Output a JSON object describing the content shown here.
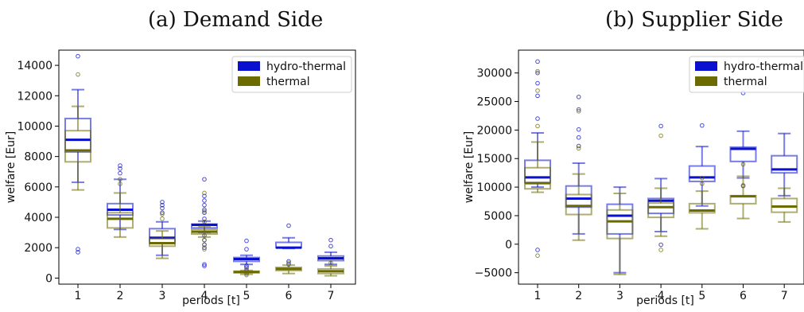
{
  "chart_data": [
    {
      "type": "box",
      "title": "(a) Demand Side",
      "xlabel": "periods [t]",
      "ylabel": "welfare [Eur]",
      "categories": [
        "1",
        "2",
        "3",
        "4",
        "5",
        "6",
        "7"
      ],
      "ylim": [
        -400,
        15000
      ],
      "yticks": [
        0,
        2000,
        4000,
        6000,
        8000,
        10000,
        12000,
        14000
      ],
      "legend_position": "top-right",
      "colors": {
        "hydro-thermal": "#0a10d0",
        "thermal": "#6b6b00"
      },
      "series": [
        {
          "name": "hydro-thermal",
          "boxes": [
            {
              "whislo": 6300,
              "q1": 8300,
              "med": 9100,
              "q3": 10500,
              "whishi": 12400,
              "fliers": [
                1700,
                1900,
                14600
              ]
            },
            {
              "whislo": 3200,
              "q1": 4150,
              "med": 4500,
              "q3": 4900,
              "whishi": 6500,
              "fliers": [
                6900,
                7200,
                7400
              ]
            },
            {
              "whislo": 1500,
              "q1": 2300,
              "med": 2650,
              "q3": 3250,
              "whishi": 3700,
              "fliers": [
                4300,
                4600,
                4800,
                5000
              ]
            },
            {
              "whislo": 3000,
              "q1": 3300,
              "med": 3500,
              "q3": 3550,
              "whishi": 3750,
              "fliers": [
                800,
                900,
                2000,
                2200,
                2500,
                2800,
                3900,
                4300,
                4500,
                4800,
                5100,
                5400,
                6500
              ]
            },
            {
              "whislo": 900,
              "q1": 1100,
              "med": 1250,
              "q3": 1350,
              "whishi": 1500,
              "fliers": [
                300,
                500,
                700,
                800,
                1900,
                2450
              ]
            },
            {
              "whislo": 1950,
              "q1": 2000,
              "med": 2000,
              "q3": 2350,
              "whishi": 2650,
              "fliers": [
                900,
                1100,
                3450
              ]
            },
            {
              "whislo": 900,
              "q1": 1150,
              "med": 1300,
              "q3": 1450,
              "whishi": 1700,
              "fliers": [
                2100,
                2500
              ]
            }
          ]
        },
        {
          "name": "thermal",
          "boxes": [
            {
              "whislo": 5800,
              "q1": 7650,
              "med": 8400,
              "q3": 9700,
              "whishi": 11300,
              "fliers": [
                13400
              ]
            },
            {
              "whislo": 2700,
              "q1": 3300,
              "med": 3900,
              "q3": 4300,
              "whishi": 5600,
              "fliers": [
                6200,
                6500
              ]
            },
            {
              "whislo": 1300,
              "q1": 2100,
              "med": 2300,
              "q3": 2600,
              "whishi": 3100,
              "fliers": [
                3900,
                4200
              ]
            },
            {
              "whislo": 2700,
              "q1": 2900,
              "med": 3050,
              "q3": 3200,
              "whishi": 3400,
              "fliers": [
                1900,
                2200,
                2500,
                3700,
                4400,
                5600
              ]
            },
            {
              "whislo": 250,
              "q1": 350,
              "med": 400,
              "q3": 450,
              "whishi": 500,
              "fliers": [
                200,
                600
              ]
            },
            {
              "whislo": 300,
              "q1": 500,
              "med": 600,
              "q3": 700,
              "whishi": 850,
              "fliers": [
                1000
              ]
            },
            {
              "whislo": 150,
              "q1": 300,
              "med": 450,
              "q3": 600,
              "whishi": 800,
              "fliers": [
                1000
              ]
            }
          ]
        }
      ]
    },
    {
      "type": "box",
      "title": "(b) Supplier Side",
      "xlabel": "periods [t]",
      "ylabel": "welfare [Eur]",
      "categories": [
        "1",
        "2",
        "3",
        "4",
        "5",
        "6",
        "7"
      ],
      "ylim": [
        -7000,
        34000
      ],
      "yticks": [
        -5000,
        0,
        5000,
        10000,
        15000,
        20000,
        25000,
        30000
      ],
      "legend_position": "top-right",
      "colors": {
        "hydro-thermal": "#0a10d0",
        "thermal": "#6b6b00"
      },
      "series": [
        {
          "name": "hydro-thermal",
          "boxes": [
            {
              "whislo": 10000,
              "q1": 10800,
              "med": 11700,
              "q3": 14700,
              "whishi": 19500,
              "fliers": [
                -1000,
                22000,
                26000,
                28200,
                30000,
                32000
              ]
            },
            {
              "whislo": 1800,
              "q1": 6500,
              "med": 8000,
              "q3": 10200,
              "whishi": 14200,
              "fliers": [
                17200,
                18700,
                20100,
                23600,
                25800
              ]
            },
            {
              "whislo": -5000,
              "q1": 1800,
              "med": 5000,
              "q3": 7000,
              "whishi": 10000,
              "fliers": []
            },
            {
              "whislo": 2200,
              "q1": 5400,
              "med": 7600,
              "q3": 8000,
              "whishi": 11500,
              "fliers": [
                -100,
                20700
              ]
            },
            {
              "whislo": 6700,
              "q1": 11000,
              "med": 11700,
              "q3": 13700,
              "whishi": 17100,
              "fliers": [
                20800
              ]
            },
            {
              "whislo": 11600,
              "q1": 14500,
              "med": 16700,
              "q3": 17000,
              "whishi": 19800,
              "fliers": [
                10200,
                26500
              ]
            },
            {
              "whislo": 8500,
              "q1": 12500,
              "med": 13100,
              "q3": 15500,
              "whishi": 19400,
              "fliers": []
            }
          ]
        },
        {
          "name": "thermal",
          "boxes": [
            {
              "whislo": 9100,
              "q1": 9700,
              "med": 10700,
              "q3": 13400,
              "whishi": 17900,
              "fliers": [
                -2000,
                20700,
                26900,
                30300
              ]
            },
            {
              "whislo": 700,
              "q1": 5200,
              "med": 6700,
              "q3": 8700,
              "whishi": 12300,
              "fliers": [
                16800,
                23300
              ]
            },
            {
              "whislo": -5300,
              "q1": 1000,
              "med": 4000,
              "q3": 6000,
              "whishi": 8900,
              "fliers": []
            },
            {
              "whislo": 1400,
              "q1": 4700,
              "med": 6500,
              "q3": 7200,
              "whishi": 9800,
              "fliers": [
                -1000,
                19000
              ]
            },
            {
              "whislo": 2700,
              "q1": 5500,
              "med": 5900,
              "q3": 7100,
              "whishi": 9300,
              "fliers": [
                10600,
                11600
              ]
            },
            {
              "whislo": 4500,
              "q1": 7100,
              "med": 8400,
              "q3": 8500,
              "whishi": 11900,
              "fliers": [
                10300,
                14000
              ]
            },
            {
              "whislo": 3900,
              "q1": 5600,
              "med": 6600,
              "q3": 8000,
              "whishi": 9800,
              "fliers": []
            }
          ]
        }
      ]
    }
  ]
}
